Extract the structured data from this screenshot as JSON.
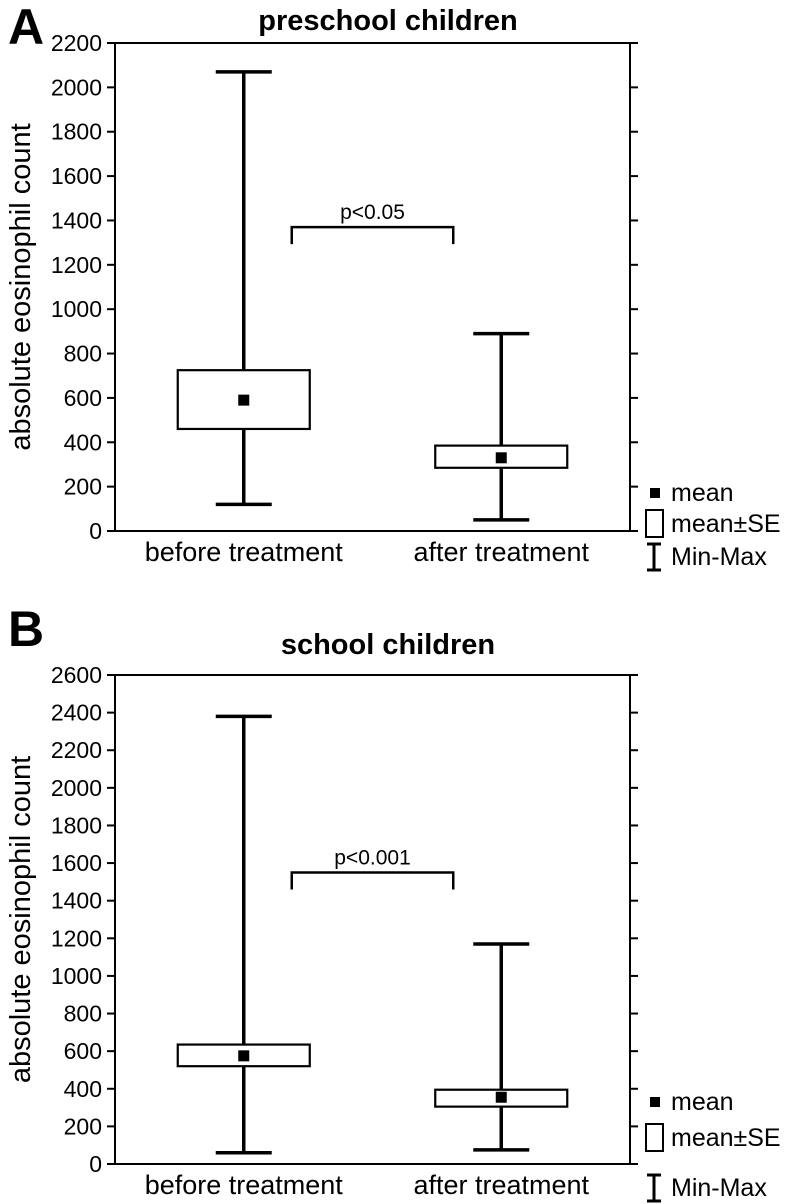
{
  "figure": {
    "background": "#ffffff",
    "text_color": "#000000"
  },
  "chart_data": [
    {
      "panel_letter": "A",
      "type": "box",
      "box_style": "mean-se-minmax",
      "title": "preschool children",
      "ylabel": "absolute eosinophil count",
      "ylim": [
        0,
        2200
      ],
      "ytick_step": 200,
      "grid": false,
      "categories": [
        "before treatment",
        "after treatment"
      ],
      "boxes": [
        {
          "category": "before treatment",
          "mean": 590,
          "se_low": 460,
          "se_high": 725,
          "min": 120,
          "max": 2070
        },
        {
          "category": "after treatment",
          "mean": 330,
          "se_low": 285,
          "se_high": 385,
          "min": 50,
          "max": 890
        }
      ],
      "significance": {
        "label": "p<0.05",
        "bar_y": 1370
      },
      "legend": {
        "position": "right-bottom",
        "items": [
          {
            "symbol": "mean-square",
            "label": "mean"
          },
          {
            "symbol": "se-box",
            "label": "mean±SE"
          },
          {
            "symbol": "minmax-whisker",
            "label": "Min-Max"
          }
        ]
      }
    },
    {
      "panel_letter": "B",
      "type": "box",
      "box_style": "mean-se-minmax",
      "title": "school children",
      "ylabel": "absolute eosinophil count",
      "ylim": [
        0,
        2600
      ],
      "ytick_step": 200,
      "grid": false,
      "categories": [
        "before treatment",
        "after treatment"
      ],
      "boxes": [
        {
          "category": "before treatment",
          "mean": 575,
          "se_low": 520,
          "se_high": 635,
          "min": 60,
          "max": 2380
        },
        {
          "category": "after treatment",
          "mean": 355,
          "se_low": 305,
          "se_high": 395,
          "min": 75,
          "max": 1170
        }
      ],
      "significance": {
        "label": "p<0.001",
        "bar_y": 1550
      },
      "legend": {
        "position": "right-bottom",
        "items": [
          {
            "symbol": "mean-square",
            "label": "mean"
          },
          {
            "symbol": "se-box",
            "label": "mean±SE"
          },
          {
            "symbol": "minmax-whisker",
            "label": "Min-Max"
          }
        ]
      }
    }
  ]
}
